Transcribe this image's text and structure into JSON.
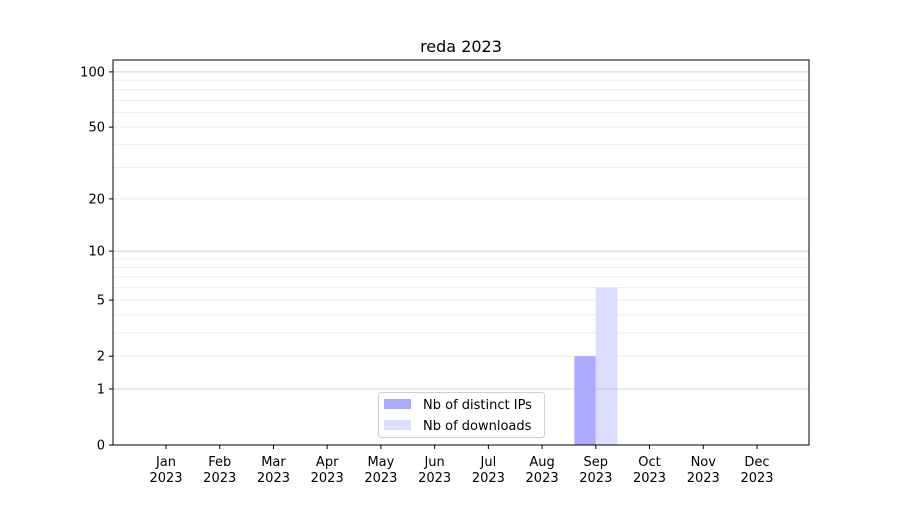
{
  "chart_data": {
    "type": "bar",
    "title": "reda 2023",
    "xlabel": "",
    "ylabel": "",
    "categories": [
      "Jan\n2023",
      "Feb\n2023",
      "Mar\n2023",
      "Apr\n2023",
      "May\n2023",
      "Jun\n2023",
      "Jul\n2023",
      "Aug\n2023",
      "Sep\n2023",
      "Oct\n2023",
      "Nov\n2023",
      "Dec\n2023"
    ],
    "series": [
      {
        "name": "Nb of distinct IPs",
        "color": "#aaaaff",
        "values": [
          0,
          0,
          0,
          0,
          0,
          0,
          0,
          0,
          2,
          0,
          0,
          0
        ]
      },
      {
        "name": "Nb of downloads",
        "color": "#ddddff",
        "values": [
          0,
          0,
          0,
          0,
          0,
          0,
          0,
          0,
          6,
          0,
          0,
          0
        ]
      }
    ],
    "yscale": "log(1+y)",
    "ylim": [
      0,
      116
    ],
    "yticks": [
      0,
      1,
      2,
      5,
      10,
      20,
      50,
      100
    ],
    "grid": true,
    "legend": "bottom-center"
  }
}
